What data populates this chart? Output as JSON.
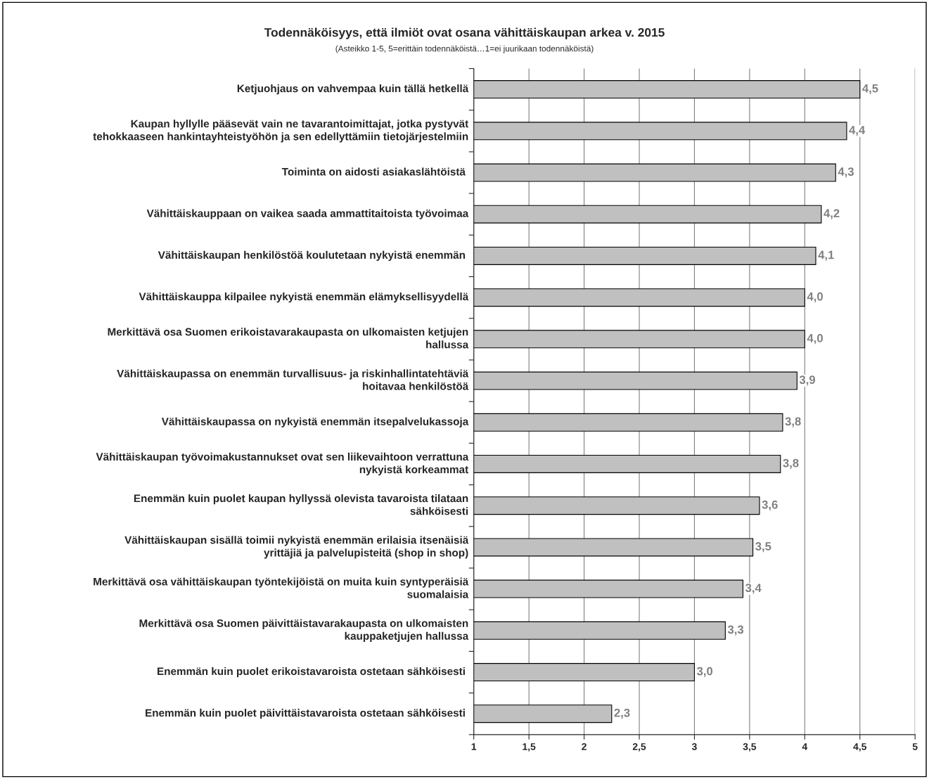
{
  "chart_data": {
    "type": "bar",
    "orientation": "horizontal",
    "title": "Todennäköisyys, että ilmiöt ovat osana vähittäiskaupan arkea v. 2015",
    "subtitle": "(Asteikko 1-5, 5=erittäin todennäköistä…1=ei juurikaan todennäköistä)",
    "categories": [
      "Ketjuohjaus on vahvempaa kuin tällä hetkellä",
      "Kaupan hyllylle pääsevät vain ne tavarantoimittajat, jotka pystyvät\ntehokkaaseen hankintayhteistyöhön ja sen edellyttämiin tietojärjestelmiin",
      "Toiminta on aidosti asiakaslähtöistä ",
      "Vähittäiskauppaan on vaikea saada ammattitaitoista työvoimaa",
      "Vähittäiskaupan henkilöstöä koulutetaan nykyistä enemmän ",
      "Vähittäiskauppa kilpailee nykyistä enemmän elämyksellisyydellä",
      "Merkittävä osa Suomen erikoistavarakaupasta on ulkomaisten ketjujen\nhallussa",
      "Vähittäiskaupassa on enemmän turvallisuus- ja riskinhallintatehtäviä\nhoitavaa henkilöstöä",
      "Vähittäiskaupassa on nykyistä enemmän itsepalvelukassoja",
      "Vähittäiskaupan työvoimakustannukset ovat sen liikevaihtoon verrattuna\nnykyistä korkeammat",
      "Enemmän kuin puolet kaupan hyllyssä olevista tavaroista tilataan\nsähköisesti",
      "Vähittäiskaupan sisällä toimii nykyistä enemmän erilaisia itsenäisiä\nyrittäjiä ja palvelupisteitä (shop in shop)",
      "Merkittävä osa vähittäiskaupan työntekijöistä on muita kuin syntyperäisiä\nsuomalaisia",
      "Merkittävä osa Suomen päivittäistavarakaupasta on ulkomaisten\nkauppaketjujen hallussa",
      "Enemmän kuin puolet erikoistavaroista ostetaan sähköisesti ",
      "Enemmän kuin puolet päivittäistavaroista ostetaan sähköisesti "
    ],
    "values": [
      4.5,
      4.38,
      4.28,
      4.15,
      4.1,
      4.0,
      4.0,
      3.93,
      3.8,
      3.78,
      3.59,
      3.53,
      3.44,
      3.28,
      3.0,
      2.25
    ],
    "value_labels": [
      "4,5",
      "4,4",
      "4,3",
      "4,2",
      "4,1",
      "4,0",
      "4,0",
      "3,9",
      "3,8",
      "3,8",
      "3,6",
      "3,5",
      "3,4",
      "3,3",
      "3,0",
      "2,3"
    ],
    "color": "#c0c0c0",
    "xlim": [
      1,
      5
    ],
    "xticks": [
      1,
      {
        "value": 1.5,
        "label": "1,5"
      },
      2,
      {
        "value": 2.5,
        "label": "2,5"
      },
      3,
      {
        "value": 3.5,
        "label": "3,5"
      },
      4,
      {
        "value": 4.5,
        "label": "4,5"
      },
      5
    ],
    "grid": "x",
    "legend": false
  }
}
